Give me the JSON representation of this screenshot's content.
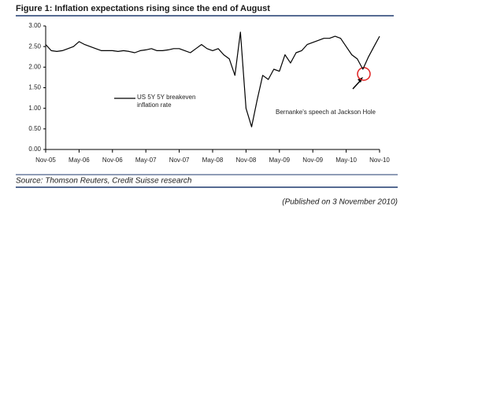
{
  "chart_data": {
    "type": "line",
    "title": "Figure 1: Inflation expectations rising since the end of August",
    "source": "Source: Thomson Reuters, Credit Suisse research",
    "note": "(Published on 3 November 2010)",
    "annotation": "Bernanke's speech at Jackson Hole",
    "categories": [
      "Nov-05",
      null,
      null,
      null,
      null,
      null,
      "May-06",
      null,
      null,
      null,
      null,
      null,
      "Nov-06",
      null,
      null,
      null,
      null,
      null,
      "May-07",
      null,
      null,
      null,
      null,
      null,
      "Nov-07",
      null,
      null,
      null,
      null,
      null,
      "May-08",
      null,
      null,
      null,
      null,
      null,
      "Nov-08",
      null,
      null,
      null,
      null,
      null,
      "May-09",
      null,
      null,
      null,
      null,
      null,
      "Nov-09",
      null,
      null,
      null,
      null,
      null,
      "May-10",
      null,
      null,
      null,
      null,
      null,
      "Nov-10"
    ],
    "series": [
      {
        "name": "US 5Y 5Y breakeven inflation rate",
        "color": "#000000",
        "values": [
          2.55,
          2.4,
          2.38,
          2.4,
          2.45,
          2.5,
          2.62,
          2.55,
          2.5,
          2.45,
          2.4,
          2.4,
          2.4,
          2.38,
          2.4,
          2.38,
          2.35,
          2.4,
          2.42,
          2.45,
          2.4,
          2.4,
          2.42,
          2.45,
          2.45,
          2.4,
          2.35,
          2.45,
          2.55,
          2.45,
          2.4,
          2.45,
          2.3,
          2.2,
          1.8,
          2.85,
          1.0,
          0.55,
          1.2,
          1.8,
          1.7,
          1.95,
          1.9,
          2.3,
          2.1,
          2.35,
          2.4,
          2.55,
          2.6,
          2.65,
          2.7,
          2.7,
          2.75,
          2.7,
          2.5,
          2.3,
          2.2,
          1.95,
          2.25,
          2.5,
          2.75
        ]
      }
    ],
    "ylim": [
      0,
      3
    ],
    "yticks": [
      {
        "value": 0,
        "label": "0.00"
      },
      {
        "value": 0.5,
        "label": "0.50"
      },
      {
        "value": 1,
        "label": "1.00"
      },
      {
        "value": 1.5,
        "label": "1.50"
      },
      {
        "value": 2,
        "label": "2.00"
      },
      {
        "value": 2.5,
        "label": "2.50"
      },
      {
        "value": 3,
        "label": "3.00"
      }
    ],
    "grid": false
  }
}
